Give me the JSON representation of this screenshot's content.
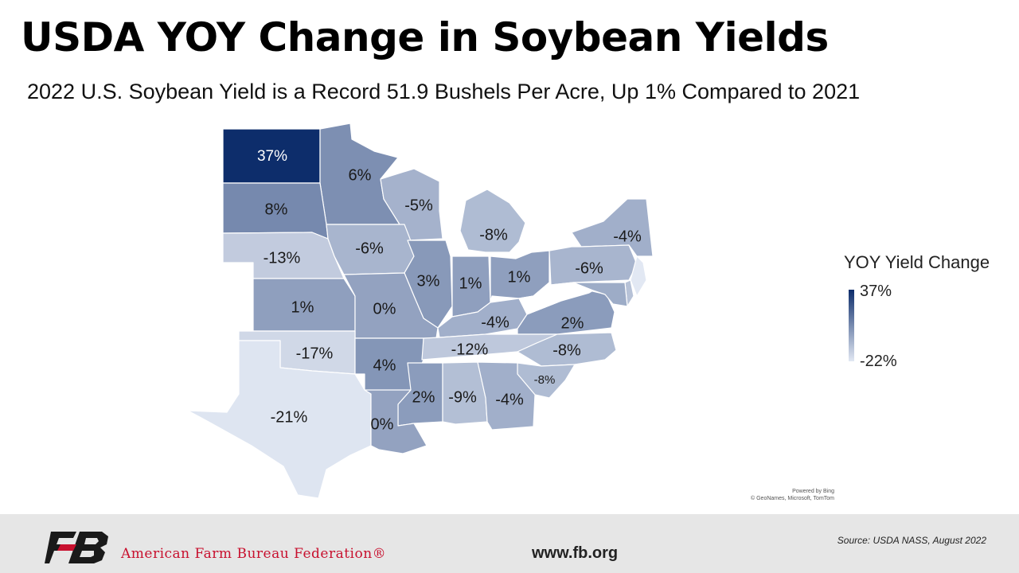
{
  "title": "USDA YOY Change in Soybean Yields",
  "subtitle": "2022 U.S. Soybean Yield is a Record 51.9 Bushels Per Acre, Up 1% Compared to 2021",
  "legend": {
    "title": "YOY Yield Change",
    "max_label": "37%",
    "min_label": "-22%",
    "max_value": 37,
    "min_value": -22,
    "color_high": "#0d2d6b",
    "color_low": "#e2e8f3"
  },
  "attribution": {
    "line1": "Powered by Bing",
    "line2": "© GeoNames, Microsoft, TomTom"
  },
  "footer": {
    "org_name": "American Farm Bureau Federation®",
    "website": "www.fb.org",
    "source": "Source:  USDA NASS, August 2022",
    "brand_color": "#c8102e"
  },
  "states": [
    {
      "state": "North Dakota",
      "value": 37,
      "label": "37%"
    },
    {
      "state": "Minnesota",
      "value": 6,
      "label": "6%"
    },
    {
      "state": "South Dakota",
      "value": 8,
      "label": "8%"
    },
    {
      "state": "Wisconsin",
      "value": -5,
      "label": "-5%"
    },
    {
      "state": "Michigan",
      "value": -8,
      "label": "-8%"
    },
    {
      "state": "New York",
      "value": -4,
      "label": "-4%"
    },
    {
      "state": "Nebraska",
      "value": -13,
      "label": "-13%"
    },
    {
      "state": "Iowa",
      "value": -6,
      "label": "-6%"
    },
    {
      "state": "Illinois",
      "value": 3,
      "label": "3%"
    },
    {
      "state": "Indiana",
      "value": 1,
      "label": "1%"
    },
    {
      "state": "Ohio",
      "value": 1,
      "label": "1%"
    },
    {
      "state": "Pennsylvania",
      "value": -6,
      "label": "-6%"
    },
    {
      "state": "Kansas",
      "value": 1,
      "label": "1%"
    },
    {
      "state": "Missouri",
      "value": 0,
      "label": "0%"
    },
    {
      "state": "Kentucky",
      "value": -4,
      "label": "-4%"
    },
    {
      "state": "Virginia",
      "value": 2,
      "label": "2%"
    },
    {
      "state": "Oklahoma",
      "value": -17,
      "label": "-17%"
    },
    {
      "state": "Arkansas",
      "value": 4,
      "label": "4%"
    },
    {
      "state": "Tennessee",
      "value": -12,
      "label": "-12%"
    },
    {
      "state": "North Carolina",
      "value": -8,
      "label": "-8%"
    },
    {
      "state": "South Carolina",
      "value": -8,
      "label": "-8%"
    },
    {
      "state": "Mississippi",
      "value": 2,
      "label": "2%"
    },
    {
      "state": "Alabama",
      "value": -9,
      "label": "-9%"
    },
    {
      "state": "Georgia",
      "value": -4,
      "label": "-4%"
    },
    {
      "state": "Texas",
      "value": -21,
      "label": "-21%"
    },
    {
      "state": "Louisiana",
      "value": 0,
      "label": "0%"
    },
    {
      "state": "New Jersey",
      "value": -22,
      "label": ""
    },
    {
      "state": "Delaware",
      "value": -10,
      "label": ""
    },
    {
      "state": "Maryland",
      "value": -3,
      "label": ""
    },
    {
      "state": "West Virginia",
      "value": null,
      "label": ""
    }
  ]
}
